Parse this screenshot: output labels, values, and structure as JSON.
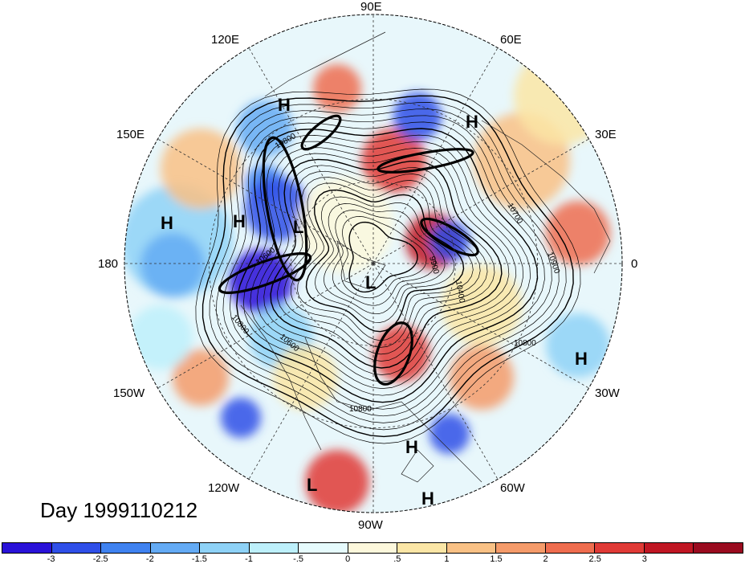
{
  "caption": "Day 1999110212",
  "longitude_labels": {
    "e90": "90E",
    "e60": "60E",
    "e30": "30E",
    "e0": "0",
    "w30": "30W",
    "w60": "60W",
    "w90": "90W",
    "w120": "120W",
    "w150": "150W",
    "e180": "180",
    "e150": "150E",
    "e120": "120E"
  },
  "pressure_centers": [
    {
      "label": "H"
    },
    {
      "label": "H"
    },
    {
      "label": "H"
    },
    {
      "label": "H"
    },
    {
      "label": "H"
    },
    {
      "label": "H"
    },
    {
      "label": "H"
    },
    {
      "label": "L"
    },
    {
      "label": "L"
    },
    {
      "label": "L"
    }
  ],
  "contour_labels": [
    "10800",
    "10700",
    "10900",
    "10400",
    "10600",
    "10800",
    "10600",
    "10800",
    "9900",
    "10800"
  ],
  "colorbar": {
    "colors": [
      "#2a12d8",
      "#2f4fe8",
      "#3f82f0",
      "#64abf5",
      "#8ed2f7",
      "#bdf0fb",
      "#e6fbfd",
      "#fdf8dc",
      "#fbe6a6",
      "#f9c185",
      "#f59b6a",
      "#ef6d4f",
      "#e03a36",
      "#c01623",
      "#9a0b1f"
    ],
    "ticks": [
      "-3",
      "-2.5",
      "-2",
      "-1.5",
      "-1",
      "-.5",
      "0",
      ".5",
      "1",
      "1.5",
      "2",
      "2.5",
      "3"
    ]
  }
}
